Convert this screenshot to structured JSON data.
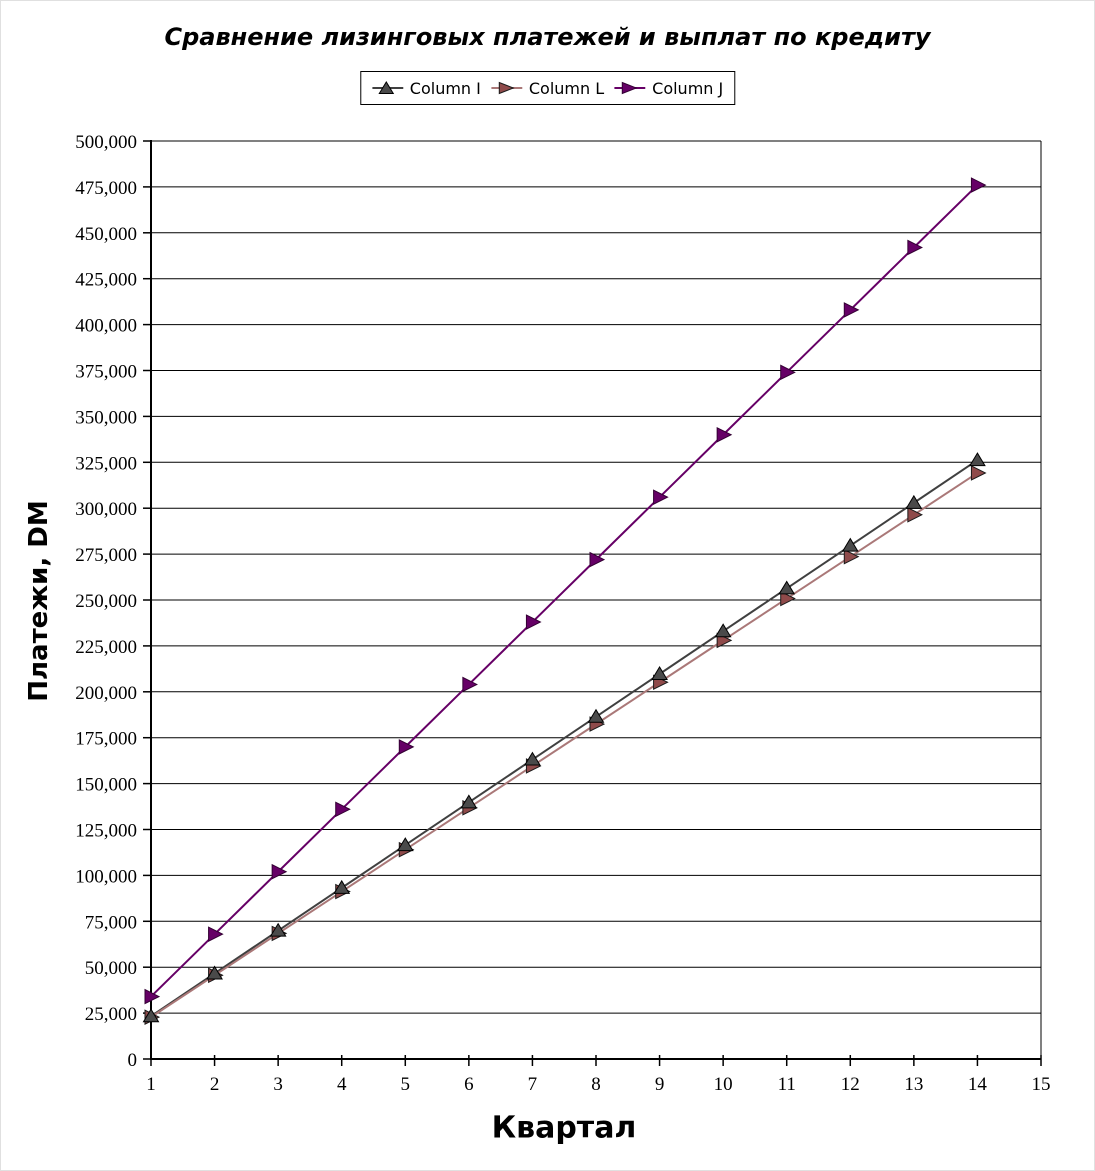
{
  "title": "Сравнение лизинговых платежей и выплат по кредиту",
  "legend": {
    "position": "top-center",
    "entries": [
      {
        "label": "Column I",
        "marker": "triangle-up",
        "color": "#404040",
        "marker_fill": "#4a4a4a"
      },
      {
        "label": "Column L",
        "marker": "triangle-right",
        "color": "#aa7878",
        "marker_fill": "#8f4a4a"
      },
      {
        "label": "Column J",
        "marker": "triangle-right",
        "color": "#660066",
        "marker_fill": "#660066"
      }
    ]
  },
  "chart_data": {
    "type": "line",
    "title": "Сравнение лизинговых платежей и выплат по кредиту",
    "xlabel": "Квартал",
    "ylabel": "Платежи, DM",
    "xlim": [
      1,
      15
    ],
    "ylim": [
      0,
      500000
    ],
    "x_ticks": [
      1,
      2,
      3,
      4,
      5,
      6,
      7,
      8,
      9,
      10,
      11,
      12,
      13,
      14,
      15
    ],
    "y_ticks": [
      0,
      25000,
      50000,
      75000,
      100000,
      125000,
      150000,
      175000,
      200000,
      225000,
      250000,
      275000,
      300000,
      325000,
      350000,
      375000,
      400000,
      425000,
      450000,
      475000,
      500000
    ],
    "grid": "horizontal",
    "grid_color": "#000000",
    "background": "#ffffff",
    "x": [
      1,
      2,
      3,
      4,
      5,
      6,
      7,
      8,
      9,
      10,
      11,
      12,
      13,
      14
    ],
    "series": [
      {
        "name": "Column I",
        "marker": "triangle-up",
        "color": "#404040",
        "marker_fill": "#4a4a4a",
        "marker_stroke": "#000000",
        "values": [
          23300,
          46600,
          69900,
          93200,
          116500,
          139800,
          163100,
          186400,
          209700,
          233000,
          256300,
          279600,
          302900,
          326200
        ]
      },
      {
        "name": "Column L",
        "marker": "triangle-right",
        "color": "#aa7878",
        "marker_fill": "#8f4a4a",
        "marker_stroke": "#1a1a1a",
        "values": [
          22800,
          45600,
          68400,
          91200,
          114000,
          136800,
          159600,
          182400,
          205200,
          228000,
          250800,
          273600,
          296400,
          319200
        ]
      },
      {
        "name": "Column J",
        "marker": "triangle-right",
        "color": "#660066",
        "marker_fill": "#660066",
        "marker_stroke": "#330033",
        "values": [
          34000,
          68000,
          102000,
          136000,
          170000,
          204000,
          238000,
          272000,
          306000,
          340000,
          374000,
          408000,
          442000,
          476000
        ]
      }
    ]
  }
}
